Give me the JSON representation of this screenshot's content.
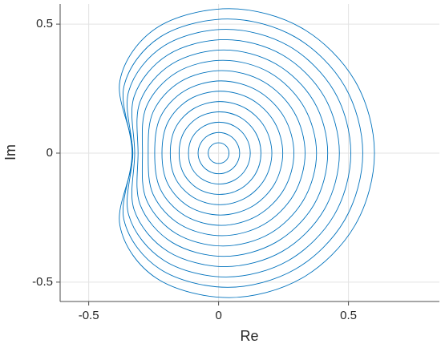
{
  "chart_data": {
    "type": "line",
    "xlabel": "Re",
    "ylabel": "Im",
    "xlim": [
      -0.61,
      0.85
    ],
    "ylim": [
      -0.575,
      0.578
    ],
    "xticks": [
      -0.5,
      0,
      0.5
    ],
    "yticks": [
      -0.5,
      0,
      0.5
    ],
    "grid": true,
    "color": "#0072bd",
    "closed": true,
    "series": [
      {
        "x": [
          0.04,
          0.035,
          0.02,
          0.0,
          -0.02,
          -0.035,
          -0.04,
          -0.035,
          -0.02,
          0.0,
          0.02,
          0.035
        ],
        "values": [
          0,
          0.02,
          0.035,
          0.04,
          0.035,
          0.02,
          0,
          -0.02,
          -0.035,
          -0.04,
          -0.035,
          -0.02
        ]
      },
      {
        "x": [
          0.081,
          0.07,
          0.041,
          0.001,
          -0.039,
          -0.068,
          -0.079,
          -0.068,
          -0.039,
          0.001,
          0.041,
          0.07
        ],
        "values": [
          0,
          0.04,
          0.069,
          0.08,
          0.069,
          0.04,
          0,
          -0.04,
          -0.069,
          -0.08,
          -0.069,
          -0.04
        ]
      },
      {
        "x": [
          0.122,
          0.106,
          0.062,
          0.002,
          -0.058,
          -0.102,
          -0.116,
          -0.102,
          -0.058,
          0.002,
          0.062,
          0.106
        ],
        "values": [
          0,
          0.06,
          0.104,
          0.12,
          0.104,
          0.06,
          0,
          -0.06,
          -0.104,
          -0.12,
          -0.104,
          -0.06
        ]
      },
      {
        "x": [
          0.163,
          0.142,
          0.083,
          0.003,
          -0.077,
          -0.134,
          -0.152,
          -0.134,
          -0.077,
          0.003,
          0.083,
          0.142
        ],
        "values": [
          0,
          0.08,
          0.139,
          0.16,
          0.139,
          0.08,
          0,
          -0.08,
          -0.139,
          -0.16,
          -0.139,
          -0.08
        ]
      },
      {
        "x": [
          0.205,
          0.178,
          0.105,
          0.005,
          -0.095,
          -0.165,
          -0.186,
          -0.165,
          -0.095,
          0.005,
          0.105,
          0.178
        ],
        "values": [
          0,
          0.1,
          0.173,
          0.2,
          0.173,
          0.1,
          0,
          -0.1,
          -0.173,
          -0.2,
          -0.173,
          -0.1
        ]
      },
      {
        "x": [
          0.247,
          0.215,
          0.127,
          0.007,
          -0.113,
          -0.195,
          -0.218,
          -0.195,
          -0.113,
          0.007,
          0.127,
          0.215
        ],
        "values": [
          0,
          0.12,
          0.208,
          0.24,
          0.208,
          0.12,
          0,
          -0.12,
          -0.208,
          -0.24,
          -0.208,
          -0.12
        ]
      },
      {
        "x": [
          0.29,
          0.252,
          0.15,
          0.01,
          -0.13,
          -0.224,
          -0.246,
          -0.224,
          -0.13,
          0.01,
          0.15,
          0.252
        ],
        "values": [
          0,
          0.14,
          0.242,
          0.28,
          0.242,
          0.14,
          0,
          -0.14,
          -0.242,
          -0.28,
          -0.242,
          -0.14
        ]
      },
      {
        "x": [
          0.333,
          0.29,
          0.173,
          0.013,
          -0.147,
          -0.252,
          -0.271,
          -0.252,
          -0.147,
          0.013,
          0.173,
          0.29
        ],
        "values": [
          0,
          0.16,
          0.277,
          0.32,
          0.277,
          0.16,
          0,
          -0.16,
          -0.277,
          -0.32,
          -0.277,
          -0.16
        ]
      },
      {
        "x": [
          0.377,
          0.328,
          0.197,
          0.017,
          -0.163,
          -0.278,
          -0.293,
          -0.278,
          -0.163,
          0.017,
          0.197,
          0.328
        ],
        "values": [
          0,
          0.18,
          0.312,
          0.36,
          0.312,
          0.18,
          0,
          -0.18,
          -0.312,
          -0.36,
          -0.312,
          -0.18
        ]
      },
      {
        "x": [
          0.42,
          0.367,
          0.22,
          0.02,
          -0.179,
          -0.302,
          -0.31,
          -0.302,
          -0.179,
          0.02,
          0.22,
          0.367
        ],
        "values": [
          0,
          0.2,
          0.346,
          0.4,
          0.346,
          0.2,
          0,
          -0.2,
          -0.346,
          -0.4,
          -0.346,
          -0.2
        ]
      },
      {
        "x": [
          0.465,
          0.406,
          0.245,
          0.025,
          -0.195,
          -0.325,
          -0.323,
          -0.325,
          -0.195,
          0.025,
          0.245,
          0.406
        ],
        "values": [
          0,
          0.22,
          0.381,
          0.44,
          0.381,
          0.22,
          0,
          -0.22,
          -0.381,
          -0.44,
          -0.381,
          -0.22
        ]
      },
      {
        "x": [
          0.509,
          0.445,
          0.269,
          0.029,
          -0.21,
          -0.346,
          -0.331,
          -0.346,
          -0.21,
          0.029,
          0.269,
          0.445
        ],
        "values": [
          0,
          0.24,
          0.416,
          0.48,
          0.416,
          0.24,
          0,
          -0.24,
          -0.416,
          -0.48,
          -0.416,
          -0.24
        ]
      },
      {
        "x": [
          0.555,
          0.485,
          0.295,
          0.035,
          -0.225,
          -0.364,
          -0.333,
          -0.364,
          -0.225,
          0.035,
          0.295,
          0.485
        ],
        "values": [
          0,
          0.26,
          0.45,
          0.52,
          0.45,
          0.26,
          0,
          -0.26,
          -0.45,
          -0.52,
          -0.45,
          -0.26
        ]
      },
      {
        "x": [
          0.6,
          0.525,
          0.32,
          0.04,
          -0.239,
          -0.38,
          -0.33,
          -0.38,
          -0.239,
          0.04,
          0.32,
          0.525
        ],
        "values": [
          0,
          0.28,
          0.485,
          0.56,
          0.485,
          0.28,
          0,
          -0.28,
          -0.485,
          -0.56,
          -0.485,
          -0.28
        ]
      }
    ]
  }
}
